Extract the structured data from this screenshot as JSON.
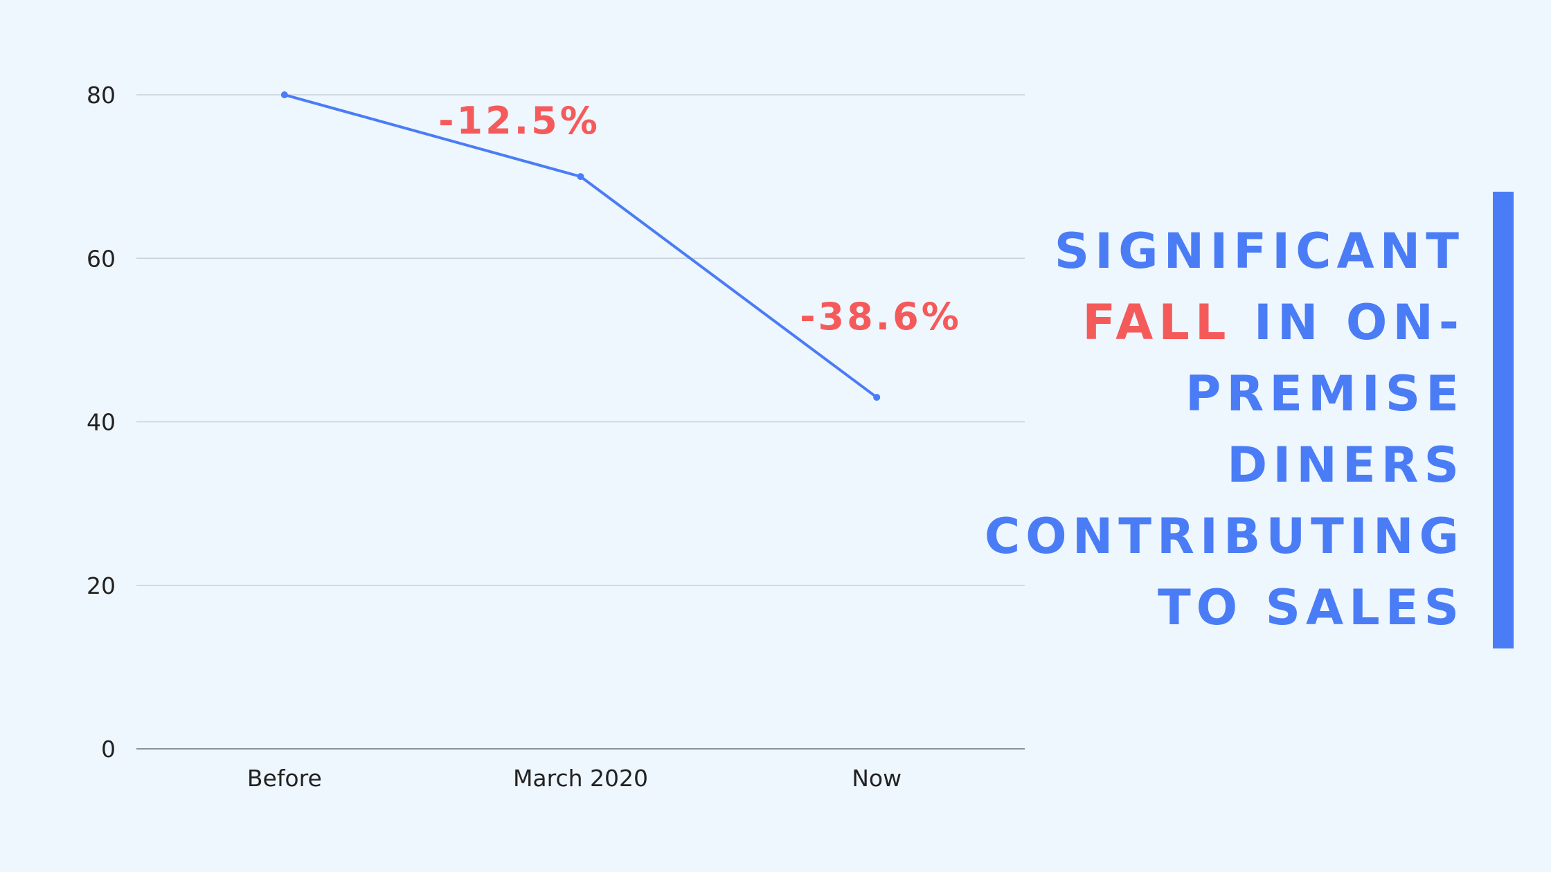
{
  "colors": {
    "background": "#eef6fe",
    "line": "#4a7cf5",
    "accent_red": "#f55a5a",
    "gridline": "#c8d0dc",
    "baseline": "#8a9099",
    "text": "#222222"
  },
  "chart_data": {
    "type": "line",
    "categories": [
      "Before",
      "March 2020",
      "Now"
    ],
    "values": [
      80,
      70,
      43
    ],
    "ylim": [
      0,
      80
    ],
    "yticks": [
      0,
      20,
      40,
      60,
      80
    ],
    "grid": true,
    "annotations": [
      "-12.5%",
      "-38.6%"
    ]
  },
  "headline": {
    "part1": "Significant",
    "highlight": "Fall",
    "part2": "in on-premise diners contributing to sales"
  }
}
